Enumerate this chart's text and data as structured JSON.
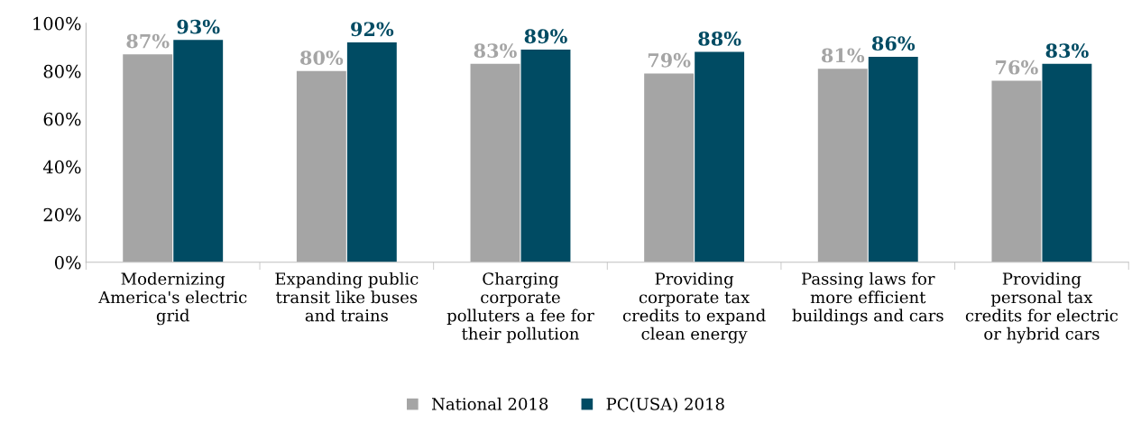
{
  "chart_data": {
    "type": "bar",
    "categories": [
      "Modernizing\nAmerica's electric\ngrid",
      "Expanding public\ntransit like buses\nand trains",
      "Charging\ncorporate\npolluters a fee for\ntheir pollution",
      "Providing\ncorporate tax\ncredits to expand\nclean energy",
      "Passing laws for\nmore efficient\nbuildings and cars",
      "Providing\npersonal tax\ncredits for electric\nor hybrid cars"
    ],
    "series": [
      {
        "name": "National 2018",
        "color": "#a5a5a5",
        "values": [
          87,
          80,
          83,
          79,
          81,
          76
        ],
        "value_labels": [
          "87%",
          "80%",
          "83%",
          "79%",
          "81%",
          "76%"
        ]
      },
      {
        "name": "PC(USA) 2018",
        "color": "#004b63",
        "values": [
          93,
          92,
          89,
          88,
          86,
          83
        ],
        "value_labels": [
          "93%",
          "92%",
          "89%",
          "88%",
          "86%",
          "83%"
        ]
      }
    ],
    "ylim": [
      0,
      100
    ],
    "yticks": [
      {
        "value": 0,
        "label": "0%"
      },
      {
        "value": 20,
        "label": "20%"
      },
      {
        "value": 40,
        "label": "40%"
      },
      {
        "value": 60,
        "label": "60%"
      },
      {
        "value": 80,
        "label": "80%"
      },
      {
        "value": 100,
        "label": "100%"
      }
    ],
    "grid": false,
    "legend": "bottom"
  }
}
